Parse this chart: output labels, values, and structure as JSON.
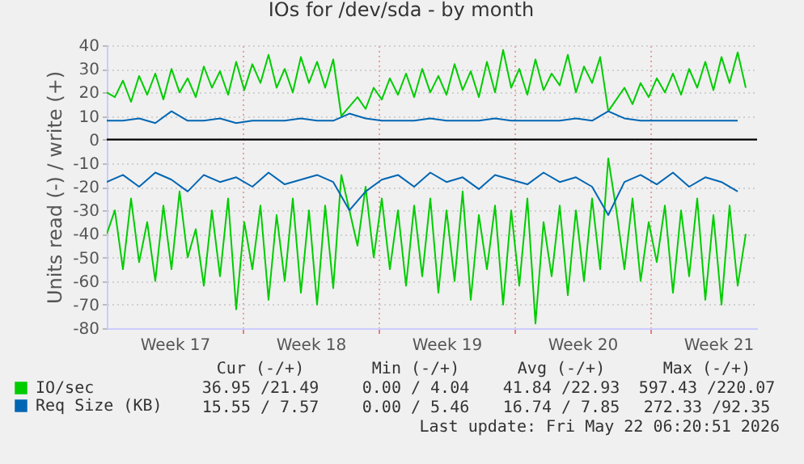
{
  "chart_data": {
    "type": "line",
    "title": "IOs for /dev/sda - by month",
    "ylabel": "Units read (-) / write (+)",
    "xlim": [
      "2026-04-20T00:00",
      "2026-05-23T12:00"
    ],
    "xticks": [
      {
        "value": "2026-04-23T12:00",
        "label": "Week 17"
      },
      {
        "value": "2026-04-27",
        "label": null
      },
      {
        "value": "2026-04-30T12:00",
        "label": "Week 18"
      },
      {
        "value": "2026-05-04",
        "label": null
      },
      {
        "value": "2026-05-07T12:00",
        "label": "Week 19"
      },
      {
        "value": "2026-05-11",
        "label": null
      },
      {
        "value": "2026-05-14T12:00",
        "label": "Week 20"
      },
      {
        "value": "2026-05-18",
        "label": null
      },
      {
        "value": "2026-05-21T12:00",
        "label": "Week 21"
      }
    ],
    "ylim": [
      -80,
      40
    ],
    "yticks": [
      -80,
      -70,
      -60,
      -50,
      -40,
      -30,
      -20,
      -10,
      0,
      10,
      20,
      30,
      40
    ],
    "grid": true,
    "legend": "bottom",
    "ref_lines": [
      {
        "axis": "y",
        "value": 0,
        "color": "#000000"
      }
    ],
    "series": [
      {
        "name": "IO/sec",
        "color": "#00cc00",
        "x": [
          "2026-04-20T00:00",
          "2026-04-20T10:00",
          "2026-04-20T20:00",
          "2026-04-21T06:00",
          "2026-04-21T16:00",
          "2026-04-22T02:00",
          "2026-04-22T12:00",
          "2026-04-22T22:00",
          "2026-04-23T08:00",
          "2026-04-23T18:00",
          "2026-04-24T04:00",
          "2026-04-24T14:00",
          "2026-04-25T00:00",
          "2026-04-25T10:00",
          "2026-04-25T20:00",
          "2026-04-26T06:00",
          "2026-04-26T16:00",
          "2026-04-27T02:00",
          "2026-04-27T12:00",
          "2026-04-27T22:00",
          "2026-04-28T08:00",
          "2026-04-28T18:00",
          "2026-04-29T04:00",
          "2026-04-29T14:00",
          "2026-04-30T00:00",
          "2026-04-30T10:00",
          "2026-04-30T20:00",
          "2026-05-01T06:00",
          "2026-05-01T16:00",
          "2026-05-02T02:00",
          "2026-05-02T12:00",
          "2026-05-02T22:00",
          "2026-05-03T08:00",
          "2026-05-03T18:00",
          "2026-05-04T04:00",
          "2026-05-04T14:00",
          "2026-05-05T00:00",
          "2026-05-05T10:00",
          "2026-05-05T20:00",
          "2026-05-06T06:00",
          "2026-05-06T16:00",
          "2026-05-07T02:00",
          "2026-05-07T12:00",
          "2026-05-07T22:00",
          "2026-05-08T08:00",
          "2026-05-08T18:00",
          "2026-05-09T04:00",
          "2026-05-09T14:00",
          "2026-05-10T00:00",
          "2026-05-10T10:00",
          "2026-05-10T20:00",
          "2026-05-11T06:00",
          "2026-05-11T16:00",
          "2026-05-12T02:00",
          "2026-05-12T12:00",
          "2026-05-12T22:00",
          "2026-05-13T08:00",
          "2026-05-13T18:00",
          "2026-05-14T04:00",
          "2026-05-14T14:00",
          "2026-05-15T00:00",
          "2026-05-15T10:00",
          "2026-05-15T20:00",
          "2026-05-16T06:00",
          "2026-05-16T16:00",
          "2026-05-17T02:00",
          "2026-05-17T12:00",
          "2026-05-17T22:00",
          "2026-05-18T08:00",
          "2026-05-18T18:00",
          "2026-05-19T04:00",
          "2026-05-19T14:00",
          "2026-05-20T00:00",
          "2026-05-20T10:00",
          "2026-05-20T20:00",
          "2026-05-21T06:00",
          "2026-05-21T16:00",
          "2026-05-22T02:00",
          "2026-05-22T12:00",
          "2026-05-22T22:00"
        ],
        "values": [
          20,
          18,
          25,
          16,
          27,
          19,
          28,
          17,
          30,
          20,
          26,
          18,
          31,
          22,
          29,
          19,
          33,
          21,
          32,
          24,
          36,
          22,
          30,
          20,
          35,
          24,
          33,
          22,
          34,
          10,
          14,
          18,
          13,
          22,
          17,
          26,
          19,
          28,
          18,
          30,
          20,
          27,
          19,
          32,
          21,
          29,
          18,
          33,
          20,
          38,
          22,
          30,
          19,
          34,
          21,
          28,
          23,
          36,
          20,
          31,
          24,
          35,
          12,
          17,
          22,
          15,
          24,
          18,
          26,
          20,
          28,
          19,
          30,
          22,
          33,
          21,
          35,
          24,
          37,
          22
        ]
      },
      {
        "color": "#00cc00",
        "x": [
          "2026-04-20T00:00",
          "2026-04-20T10:00",
          "2026-04-20T20:00",
          "2026-04-21T06:00",
          "2026-04-21T16:00",
          "2026-04-22T02:00",
          "2026-04-22T12:00",
          "2026-04-22T22:00",
          "2026-04-23T08:00",
          "2026-04-23T18:00",
          "2026-04-24T04:00",
          "2026-04-24T14:00",
          "2026-04-25T00:00",
          "2026-04-25T10:00",
          "2026-04-25T20:00",
          "2026-04-26T06:00",
          "2026-04-26T16:00",
          "2026-04-27T02:00",
          "2026-04-27T12:00",
          "2026-04-27T22:00",
          "2026-04-28T08:00",
          "2026-04-28T18:00",
          "2026-04-29T04:00",
          "2026-04-29T14:00",
          "2026-04-30T00:00",
          "2026-04-30T10:00",
          "2026-04-30T20:00",
          "2026-05-01T06:00",
          "2026-05-01T16:00",
          "2026-05-02T02:00",
          "2026-05-02T12:00",
          "2026-05-02T22:00",
          "2026-05-03T08:00",
          "2026-05-03T18:00",
          "2026-05-04T04:00",
          "2026-05-04T14:00",
          "2026-05-05T00:00",
          "2026-05-05T10:00",
          "2026-05-05T20:00",
          "2026-05-06T06:00",
          "2026-05-06T16:00",
          "2026-05-07T02:00",
          "2026-05-07T12:00",
          "2026-05-07T22:00",
          "2026-05-08T08:00",
          "2026-05-08T18:00",
          "2026-05-09T04:00",
          "2026-05-09T14:00",
          "2026-05-10T00:00",
          "2026-05-10T10:00",
          "2026-05-10T20:00",
          "2026-05-11T06:00",
          "2026-05-11T16:00",
          "2026-05-12T02:00",
          "2026-05-12T12:00",
          "2026-05-12T22:00",
          "2026-05-13T08:00",
          "2026-05-13T18:00",
          "2026-05-14T04:00",
          "2026-05-14T14:00",
          "2026-05-15T00:00",
          "2026-05-15T10:00",
          "2026-05-15T20:00",
          "2026-05-16T06:00",
          "2026-05-16T16:00",
          "2026-05-17T02:00",
          "2026-05-17T12:00",
          "2026-05-17T22:00",
          "2026-05-18T08:00",
          "2026-05-18T18:00",
          "2026-05-19T04:00",
          "2026-05-19T14:00",
          "2026-05-20T00:00",
          "2026-05-20T10:00",
          "2026-05-20T20:00",
          "2026-05-21T06:00",
          "2026-05-21T16:00",
          "2026-05-22T02:00",
          "2026-05-22T12:00",
          "2026-05-22T22:00"
        ],
        "values": [
          -40,
          -30,
          -55,
          -25,
          -52,
          -35,
          -60,
          -28,
          -55,
          -22,
          -50,
          -38,
          -62,
          -30,
          -58,
          -25,
          -72,
          -35,
          -55,
          -28,
          -68,
          -32,
          -60,
          -25,
          -65,
          -30,
          -70,
          -28,
          -63,
          -15,
          -30,
          -45,
          -20,
          -50,
          -25,
          -55,
          -30,
          -62,
          -28,
          -58,
          -25,
          -65,
          -30,
          -60,
          -22,
          -68,
          -32,
          -55,
          -28,
          -70,
          -30,
          -62,
          -25,
          -78,
          -35,
          -58,
          -28,
          -66,
          -30,
          -60,
          -25,
          -55,
          -8,
          -30,
          -55,
          -25,
          -60,
          -35,
          -52,
          -28,
          -65,
          -30,
          -58,
          -25,
          -68,
          -32,
          -70,
          -28,
          -62,
          -40
        ]
      },
      {
        "name": "Req Size (KB)",
        "color": "#0066b3",
        "x": [
          "2026-04-20T00:00",
          "2026-04-20T20:00",
          "2026-04-21T16:00",
          "2026-04-22T12:00",
          "2026-04-23T08:00",
          "2026-04-24T04:00",
          "2026-04-25T00:00",
          "2026-04-25T20:00",
          "2026-04-26T16:00",
          "2026-04-27T12:00",
          "2026-04-28T08:00",
          "2026-04-29T04:00",
          "2026-04-30T00:00",
          "2026-04-30T20:00",
          "2026-05-01T16:00",
          "2026-05-02T12:00",
          "2026-05-03T08:00",
          "2026-05-04T04:00",
          "2026-05-05T00:00",
          "2026-05-05T20:00",
          "2026-05-06T16:00",
          "2026-05-07T12:00",
          "2026-05-08T08:00",
          "2026-05-09T04:00",
          "2026-05-10T00:00",
          "2026-05-10T20:00",
          "2026-05-11T16:00",
          "2026-05-12T12:00",
          "2026-05-13T08:00",
          "2026-05-14T04:00",
          "2026-05-15T00:00",
          "2026-05-15T20:00",
          "2026-05-16T16:00",
          "2026-05-17T12:00",
          "2026-05-18T08:00",
          "2026-05-19T04:00",
          "2026-05-20T00:00",
          "2026-05-20T20:00",
          "2026-05-21T16:00",
          "2026-05-22T12:00"
        ],
        "values": [
          8,
          8,
          9,
          7,
          12,
          8,
          8,
          9,
          7,
          8,
          8,
          8,
          9,
          8,
          8,
          11,
          9,
          8,
          8,
          8,
          9,
          8,
          8,
          8,
          9,
          8,
          8,
          8,
          8,
          9,
          8,
          12,
          9,
          8,
          8,
          8,
          8,
          8,
          8,
          8
        ]
      },
      {
        "color": "#0066b3",
        "x": [
          "2026-04-20T00:00",
          "2026-04-20T20:00",
          "2026-04-21T16:00",
          "2026-04-22T12:00",
          "2026-04-23T08:00",
          "2026-04-24T04:00",
          "2026-04-25T00:00",
          "2026-04-25T20:00",
          "2026-04-26T16:00",
          "2026-04-27T12:00",
          "2026-04-28T08:00",
          "2026-04-29T04:00",
          "2026-04-30T00:00",
          "2026-04-30T20:00",
          "2026-05-01T16:00",
          "2026-05-02T12:00",
          "2026-05-03T08:00",
          "2026-05-04T04:00",
          "2026-05-05T00:00",
          "2026-05-05T20:00",
          "2026-05-06T16:00",
          "2026-05-07T12:00",
          "2026-05-08T08:00",
          "2026-05-09T04:00",
          "2026-05-10T00:00",
          "2026-05-10T20:00",
          "2026-05-11T16:00",
          "2026-05-12T12:00",
          "2026-05-13T08:00",
          "2026-05-14T04:00",
          "2026-05-15T00:00",
          "2026-05-15T20:00",
          "2026-05-16T16:00",
          "2026-05-17T12:00",
          "2026-05-18T08:00",
          "2026-05-19T04:00",
          "2026-05-20T00:00",
          "2026-05-20T20:00",
          "2026-05-21T16:00",
          "2026-05-22T12:00"
        ],
        "values": [
          -18,
          -15,
          -20,
          -14,
          -17,
          -22,
          -15,
          -18,
          -16,
          -20,
          -14,
          -19,
          -17,
          -15,
          -18,
          -30,
          -22,
          -17,
          -15,
          -20,
          -14,
          -18,
          -16,
          -21,
          -15,
          -17,
          -19,
          -14,
          -18,
          -16,
          -20,
          -32,
          -18,
          -15,
          -19,
          -14,
          -20,
          -16,
          -18,
          -22
        ]
      }
    ],
    "annotations": [
      "Cur (-/+)",
      "Min (-/+)",
      "Avg (-/+)",
      "Max (-/+)",
      "36.95 /21.49",
      "0.00 / 4.04",
      "41.84 /22.93",
      "597.43 /220.07",
      "15.55 / 7.57",
      "0.00 / 5.46",
      "16.74 / 7.85",
      "272.33 /92.35",
      "Last update: Fri May 22 06:20:51 2026"
    ]
  }
}
